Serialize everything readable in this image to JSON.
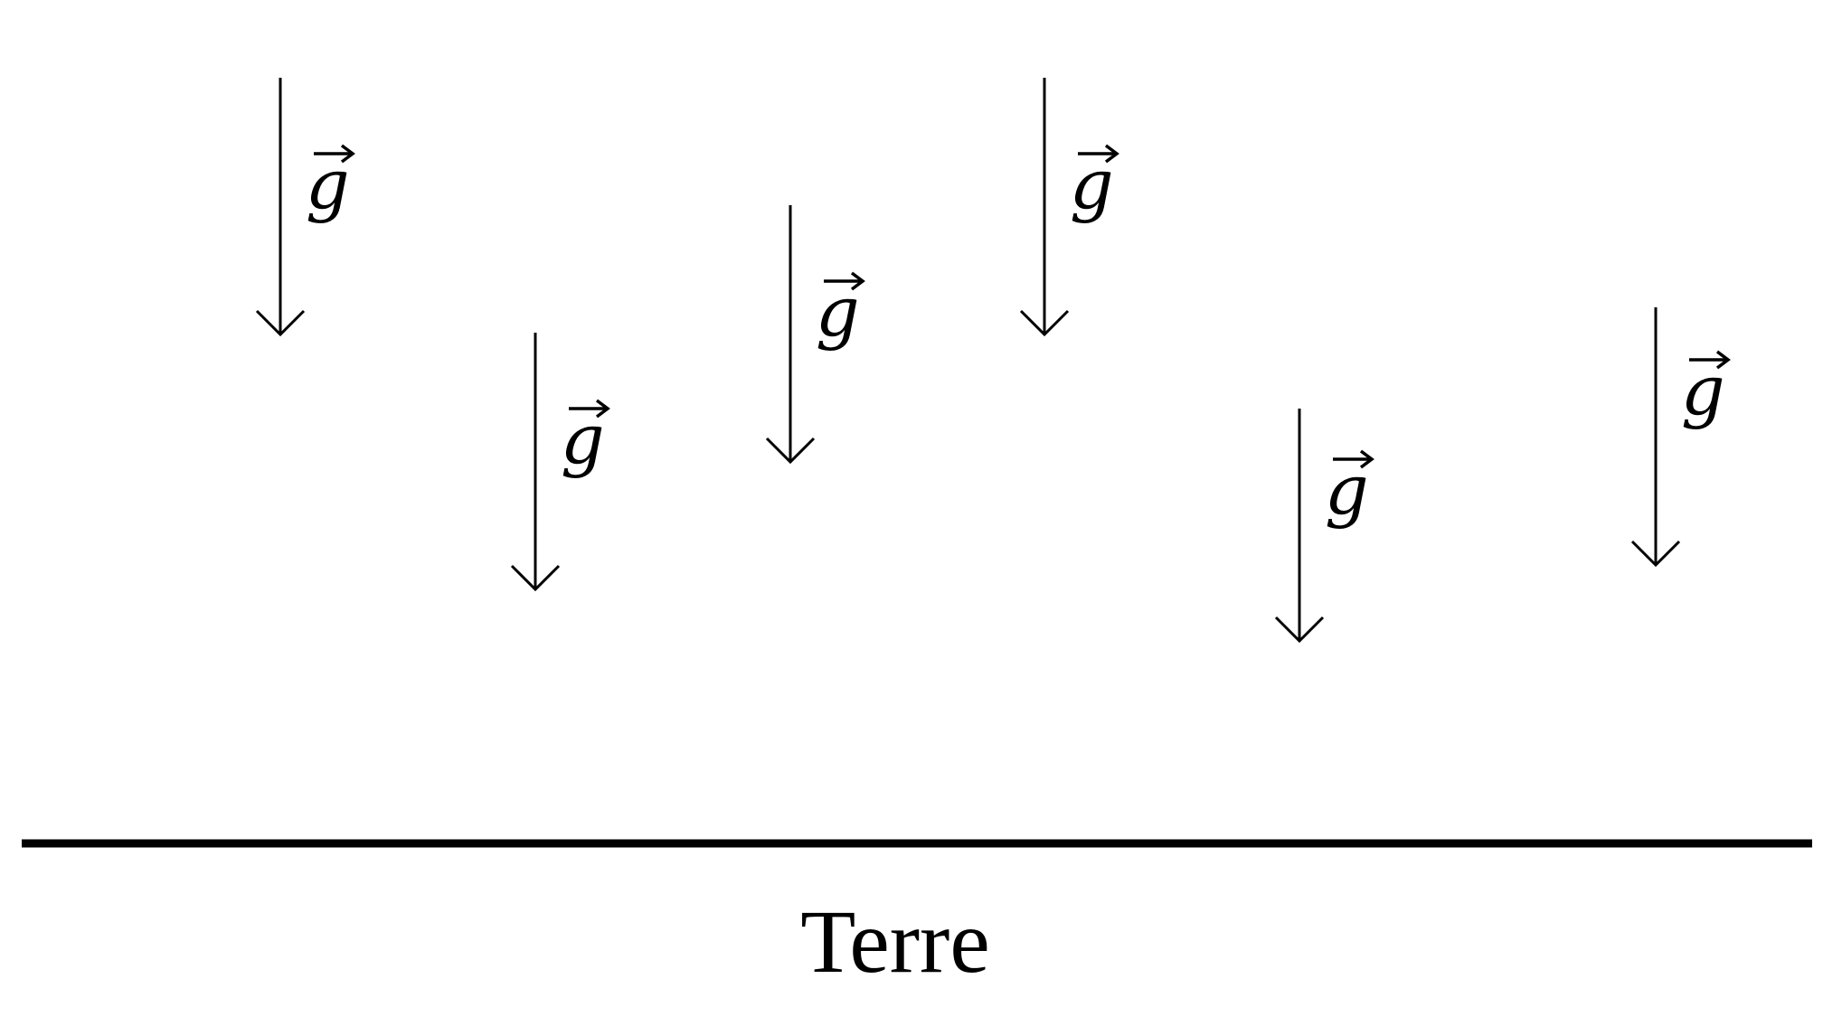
{
  "diagram": {
    "vector_symbol": "g",
    "vector_count": 6,
    "ground_label": "Terre",
    "stroke_color": "#000000",
    "background": "#ffffff"
  }
}
